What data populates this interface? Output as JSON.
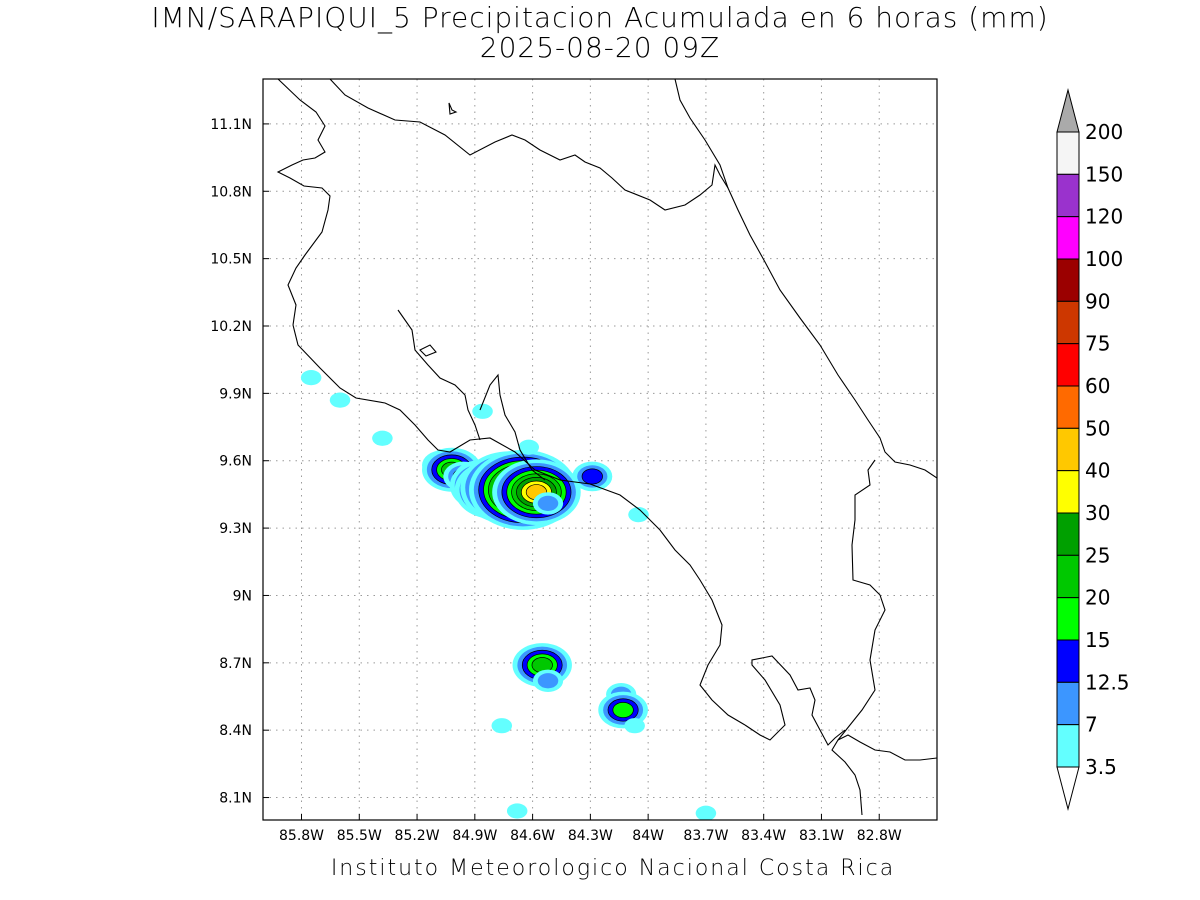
{
  "title": {
    "line1": "IMN/SARAPIQUI_5 Precipitacion Acumulada en 6 horas (mm)",
    "line2": "2025-08-20 09Z"
  },
  "credit": "Instituto Meteorologico Nacional Costa Rica",
  "map": {
    "lon_range": [
      -86.0,
      -82.5
    ],
    "lat_range": [
      8.0,
      11.3
    ],
    "lon_ticks": [
      {
        "value": -85.8,
        "label": "85.8W"
      },
      {
        "value": -85.5,
        "label": "85.5W"
      },
      {
        "value": -85.2,
        "label": "85.2W"
      },
      {
        "value": -84.9,
        "label": "84.9W"
      },
      {
        "value": -84.6,
        "label": "84.6W"
      },
      {
        "value": -84.3,
        "label": "84.3W"
      },
      {
        "value": -84.0,
        "label": "84W"
      },
      {
        "value": -83.7,
        "label": "83.7W"
      },
      {
        "value": -83.4,
        "label": "83.4W"
      },
      {
        "value": -83.1,
        "label": "83.1W"
      },
      {
        "value": -82.8,
        "label": "82.8W"
      }
    ],
    "lat_ticks": [
      {
        "value": 11.1,
        "label": "11.1N"
      },
      {
        "value": 10.8,
        "label": "10.8N"
      },
      {
        "value": 10.5,
        "label": "10.5N"
      },
      {
        "value": 10.2,
        "label": "10.2N"
      },
      {
        "value": 9.9,
        "label": "9.9N"
      },
      {
        "value": 9.6,
        "label": "9.6N"
      },
      {
        "value": 9.3,
        "label": "9.3N"
      },
      {
        "value": 9.0,
        "label": "9N"
      },
      {
        "value": 8.7,
        "label": "8.7N"
      },
      {
        "value": 8.4,
        "label": "8.4N"
      },
      {
        "value": 8.1,
        "label": "8.1N"
      }
    ],
    "grid": "dotted"
  },
  "precip_cells": [
    {
      "lon": -85.12,
      "lat": 9.58,
      "level": 1
    },
    {
      "lon": -85.07,
      "lat": 9.58,
      "level": 3
    },
    {
      "lon": -85.02,
      "lat": 9.56,
      "level": 5
    },
    {
      "lon": -84.96,
      "lat": 9.53,
      "level": 3
    },
    {
      "lon": -84.88,
      "lat": 9.52,
      "level": 4
    },
    {
      "lon": -84.85,
      "lat": 9.49,
      "level": 6
    },
    {
      "lon": -84.8,
      "lat": 9.47,
      "level": 7
    },
    {
      "lon": -84.72,
      "lat": 9.48,
      "level": 9
    },
    {
      "lon": -84.65,
      "lat": 9.47,
      "level": 10
    },
    {
      "lon": -84.58,
      "lat": 9.46,
      "level": 8
    },
    {
      "lon": -84.52,
      "lat": 9.41,
      "level": 2
    },
    {
      "lon": -84.86,
      "lat": 9.82,
      "level": 1
    },
    {
      "lon": -84.62,
      "lat": 9.66,
      "level": 1
    },
    {
      "lon": -84.29,
      "lat": 9.53,
      "level": 3
    },
    {
      "lon": -84.05,
      "lat": 9.36,
      "level": 1
    },
    {
      "lon": -84.55,
      "lat": 8.69,
      "level": 5
    },
    {
      "lon": -84.52,
      "lat": 8.62,
      "level": 2
    },
    {
      "lon": -84.14,
      "lat": 8.56,
      "level": 2
    },
    {
      "lon": -84.13,
      "lat": 8.49,
      "level": 4
    },
    {
      "lon": -84.07,
      "lat": 8.42,
      "level": 1
    },
    {
      "lon": -85.75,
      "lat": 9.97,
      "level": 1
    },
    {
      "lon": -85.6,
      "lat": 9.87,
      "level": 1
    },
    {
      "lon": -85.38,
      "lat": 9.7,
      "level": 1
    },
    {
      "lon": -84.76,
      "lat": 8.42,
      "level": 1
    },
    {
      "lon": -84.68,
      "lat": 8.04,
      "level": 1
    },
    {
      "lon": -83.7,
      "lat": 8.03,
      "level": 1
    }
  ],
  "colorbar": {
    "labels": [
      "200",
      "150",
      "120",
      "100",
      "90",
      "75",
      "60",
      "50",
      "40",
      "30",
      "25",
      "20",
      "15",
      "12.5",
      "7",
      "3.5"
    ],
    "colors": [
      "#f5f5f5",
      "#9a32cd",
      "#ff00ff",
      "#9b0000",
      "#cd3700",
      "#ff0000",
      "#ff6a00",
      "#ffc800",
      "#ffff00",
      "#00a000",
      "#00c800",
      "#00ff00",
      "#0000ff",
      "#3c96ff",
      "#63ffff"
    ],
    "upper_arrow_color": "#aaaaaa",
    "lower_arrow_color": "#ffffff"
  }
}
